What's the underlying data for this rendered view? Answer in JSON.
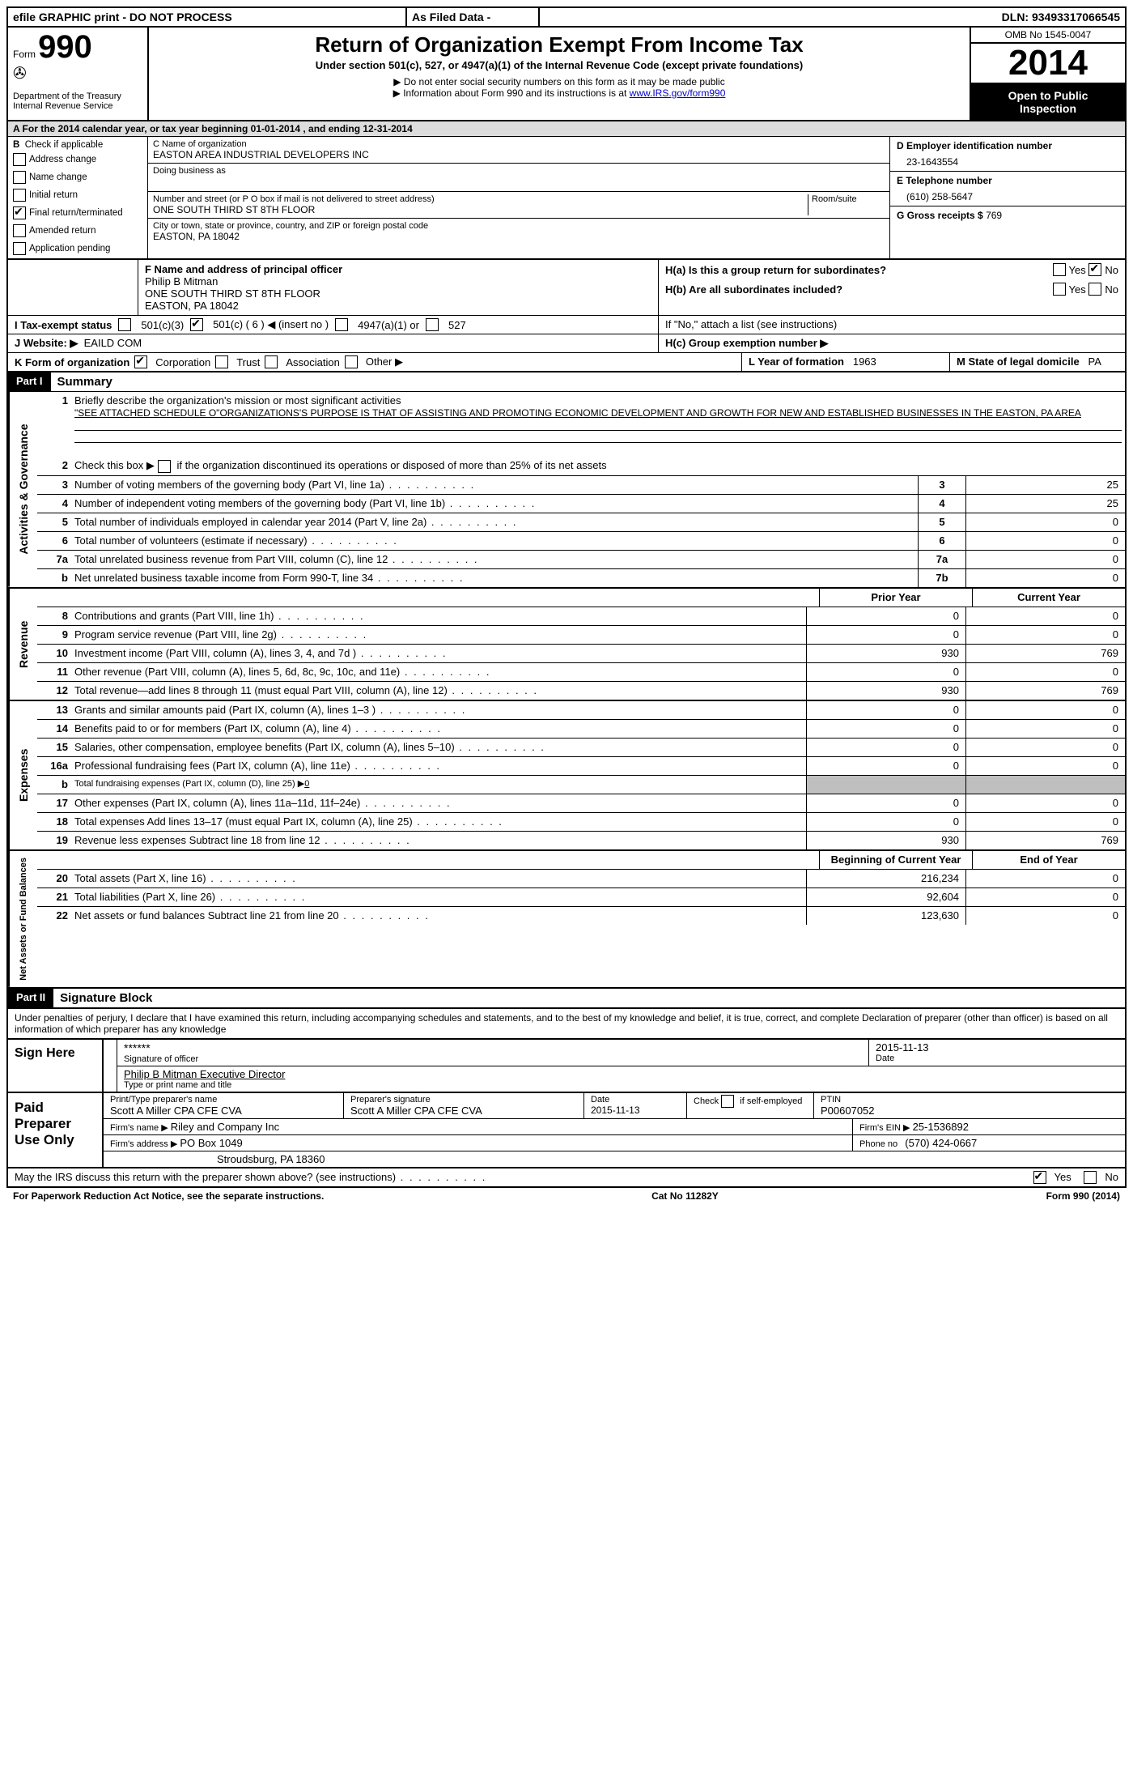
{
  "topbar": {
    "efile": "efile GRAPHIC print - DO NOT PROCESS",
    "asfiled": "As Filed Data -",
    "dln_label": "DLN:",
    "dln": "93493317066545"
  },
  "header": {
    "form_prefix": "Form",
    "form_number": "990",
    "dept1": "Department of the Treasury",
    "dept2": "Internal Revenue Service",
    "title": "Return of Organization Exempt From Income Tax",
    "subtitle": "Under section 501(c), 527, or 4947(a)(1) of the Internal Revenue Code (except private foundations)",
    "note1": "▶ Do not enter social security numbers on this form as it may be made public",
    "note2_a": "▶ Information about Form 990 and its instructions is at ",
    "note2_link": "www.IRS.gov/form990",
    "omb": "OMB No 1545-0047",
    "year": "2014",
    "open1": "Open to Public",
    "open2": "Inspection"
  },
  "row_a": "A For the 2014 calendar year, or tax year beginning 01-01-2014    , and ending 12-31-2014",
  "col_b": {
    "label": "B",
    "check_label": "Check if applicable",
    "items": [
      "Address change",
      "Name change",
      "Initial return",
      "Final return/terminated",
      "Amended return",
      "Application pending"
    ],
    "checked_index": 3
  },
  "col_c": {
    "c_label": "C Name of organization",
    "org_name": "EASTON AREA INDUSTRIAL DEVELOPERS INC",
    "dba_label": "Doing business as",
    "addr_label": "Number and street (or P O  box if mail is not delivered to street address)",
    "room_label": "Room/suite",
    "addr": "ONE SOUTH THIRD ST 8TH FLOOR",
    "city_label": "City or town, state or province, country, and ZIP or foreign postal code",
    "city": "EASTON, PA  18042"
  },
  "col_d": {
    "d_label": "D Employer identification number",
    "ein": "23-1643554",
    "e_label": "E Telephone number",
    "phone": "(610) 258-5647",
    "g_label": "G Gross receipts $",
    "gross": "769"
  },
  "col_f": {
    "f_label": "F   Name and address of principal officer",
    "name": "Philip B Mitman",
    "addr1": "ONE SOUTH THIRD ST 8TH FLOOR",
    "addr2": "EASTON, PA  18042"
  },
  "col_h": {
    "ha": "H(a)  Is this a group return for subordinates?",
    "hb": "H(b)  Are all subordinates included?",
    "hb_note": "If \"No,\" attach a list  (see instructions)",
    "hc": "H(c)  Group exemption number ▶",
    "yes": "Yes",
    "no": "No"
  },
  "line_i": {
    "label": "I   Tax-exempt status",
    "opt1": "501(c)(3)",
    "opt2": "501(c) ( 6 ) ◀ (insert no )",
    "opt3": "4947(a)(1) or",
    "opt4": "527"
  },
  "line_j": {
    "label": "J   Website: ▶",
    "value": "EAILD COM"
  },
  "line_k": {
    "label": "K Form of organization",
    "opts": [
      "Corporation",
      "Trust",
      "Association",
      "Other ▶"
    ],
    "l_label": "L Year of formation",
    "l_val": "1963",
    "m_label": "M State of legal domicile",
    "m_val": "PA"
  },
  "part1": {
    "label": "Part I",
    "title": "Summary"
  },
  "summary": {
    "line1_label": "Briefly describe the organization's mission or most significant activities",
    "line1_text": "\"SEE ATTACHED SCHEDULE O\"ORGANIZATIONS'S PURPOSE IS THAT OF ASSISTING AND PROMOTING ECONOMIC DEVELOPMENT AND GROWTH FOR NEW AND ESTABLISHED BUSINESSES IN THE EASTON, PA AREA",
    "line2": "Check this box ▶     if the organization discontinued its operations or disposed of more than 25% of its net assets"
  },
  "governance": {
    "side": "Activities & Governance",
    "rows": [
      {
        "n": "3",
        "d": "Number of voting members of the governing body (Part VI, line 1a)",
        "box": "3",
        "v": "25"
      },
      {
        "n": "4",
        "d": "Number of independent voting members of the governing body (Part VI, line 1b)",
        "box": "4",
        "v": "25"
      },
      {
        "n": "5",
        "d": "Total number of individuals employed in calendar year 2014 (Part V, line 2a)",
        "box": "5",
        "v": "0"
      },
      {
        "n": "6",
        "d": "Total number of volunteers (estimate if necessary)",
        "box": "6",
        "v": "0"
      },
      {
        "n": "7a",
        "d": "Total unrelated business revenue from Part VIII, column (C), line 12",
        "box": "7a",
        "v": "0"
      },
      {
        "n": "b",
        "d": "Net unrelated business taxable income from Form 990-T, line 34",
        "box": "7b",
        "v": "0"
      }
    ]
  },
  "two_col_header": {
    "prior": "Prior Year",
    "current": "Current Year"
  },
  "revenue": {
    "side": "Revenue",
    "rows": [
      {
        "n": "8",
        "d": "Contributions and grants (Part VIII, line 1h)",
        "p": "0",
        "c": "0"
      },
      {
        "n": "9",
        "d": "Program service revenue (Part VIII, line 2g)",
        "p": "0",
        "c": "0"
      },
      {
        "n": "10",
        "d": "Investment income (Part VIII, column (A), lines 3, 4, and 7d )",
        "p": "930",
        "c": "769"
      },
      {
        "n": "11",
        "d": "Other revenue (Part VIII, column (A), lines 5, 6d, 8c, 9c, 10c, and 11e)",
        "p": "0",
        "c": "0"
      },
      {
        "n": "12",
        "d": "Total revenue—add lines 8 through 11 (must equal Part VIII, column (A), line 12)",
        "p": "930",
        "c": "769"
      }
    ]
  },
  "expenses": {
    "side": "Expenses",
    "rows": [
      {
        "n": "13",
        "d": "Grants and similar amounts paid (Part IX, column (A), lines 1–3 )",
        "p": "0",
        "c": "0"
      },
      {
        "n": "14",
        "d": "Benefits paid to or for members (Part IX, column (A), line 4)",
        "p": "0",
        "c": "0"
      },
      {
        "n": "15",
        "d": "Salaries, other compensation, employee benefits (Part IX, column (A), lines 5–10)",
        "p": "0",
        "c": "0"
      },
      {
        "n": "16a",
        "d": "Professional fundraising fees (Part IX, column (A), line 11e)",
        "p": "0",
        "c": "0"
      },
      {
        "n": "b",
        "d": "Total fundraising expenses (Part IX, column (D), line 25) ▶",
        "p": "",
        "c": "",
        "shade": true,
        "small": true,
        "underline": "0"
      },
      {
        "n": "17",
        "d": "Other expenses (Part IX, column (A), lines 11a–11d, 11f–24e)",
        "p": "0",
        "c": "0"
      },
      {
        "n": "18",
        "d": "Total expenses  Add lines 13–17 (must equal Part IX, column (A), line 25)",
        "p": "0",
        "c": "0"
      },
      {
        "n": "19",
        "d": "Revenue less expenses  Subtract line 18 from line 12",
        "p": "930",
        "c": "769"
      }
    ]
  },
  "netassets": {
    "side": "Net Assets or Fund Balances",
    "header": {
      "begin": "Beginning of Current Year",
      "end": "End of Year"
    },
    "rows": [
      {
        "n": "20",
        "d": "Total assets (Part X, line 16)",
        "p": "216,234",
        "c": "0"
      },
      {
        "n": "21",
        "d": "Total liabilities (Part X, line 26)",
        "p": "92,604",
        "c": "0"
      },
      {
        "n": "22",
        "d": "Net assets or fund balances  Subtract line 21 from line 20",
        "p": "123,630",
        "c": "0"
      }
    ]
  },
  "part2": {
    "label": "Part II",
    "title": "Signature Block"
  },
  "penalties": "Under penalties of perjury, I declare that I have examined this return, including accompanying schedules and statements, and to the best of my knowledge and belief, it is true, correct, and complete  Declaration of preparer (other than officer) is based on all information of which preparer has any knowledge",
  "sign_here": {
    "label": "Sign Here",
    "stars": "******",
    "sig_label": "Signature of officer",
    "date": "2015-11-13",
    "date_label": "Date",
    "name": "Philip B Mitman Executive Director",
    "name_label": "Type or print name and title"
  },
  "paid_prep": {
    "label": "Paid Preparer Use Only",
    "r1": {
      "c1_label": "Print/Type preparer's name",
      "c1": "Scott A Miller CPA CFE CVA",
      "c2_label": "Preparer's signature",
      "c2": "Scott A Miller CPA CFE CVA",
      "c3_label": "Date",
      "c3": "2015-11-13",
      "c4_label": "Check       if self-employed",
      "c5_label": "PTIN",
      "c5": "P00607052"
    },
    "r2": {
      "firm_label": "Firm's name    ▶",
      "firm": "Riley and Company Inc",
      "ein_label": "Firm's EIN ▶",
      "ein": "25-1536892"
    },
    "r3": {
      "addr_label": "Firm's address ▶",
      "addr1": "PO Box 1049",
      "addr2": "Stroudsburg, PA  18360",
      "phone_label": "Phone no",
      "phone": "(570) 424-0667"
    }
  },
  "discuss": {
    "q": "May the IRS discuss this return with the preparer shown above? (see instructions)",
    "yes": "Yes",
    "no": "No"
  },
  "footer": {
    "left": "For Paperwork Reduction Act Notice, see the separate instructions.",
    "mid": "Cat No 11282Y",
    "right": "Form 990 (2014)"
  }
}
